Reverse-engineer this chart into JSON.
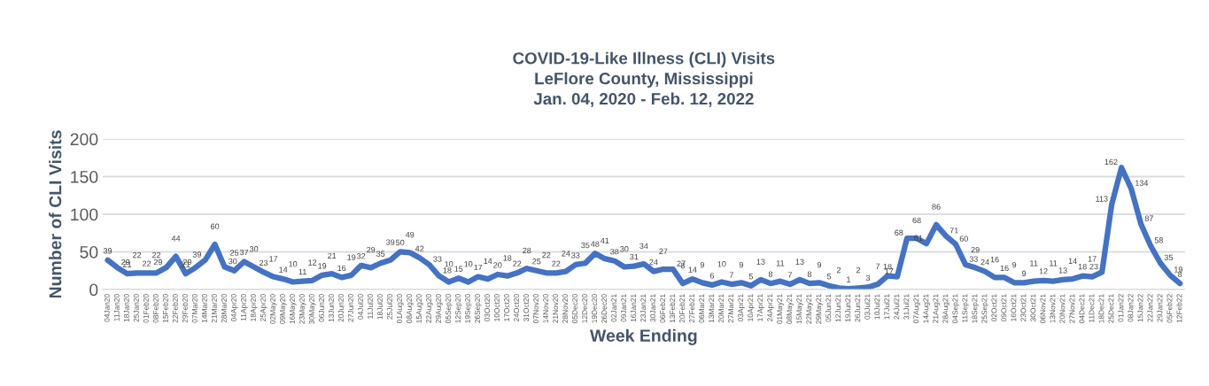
{
  "chart_data": {
    "type": "line",
    "title": "COVID-19-Like Illness (CLI) Visits\nLeFlore County, Mississippi\nJan. 04, 2020 - Feb. 12, 2022",
    "xlabel": "Week Ending",
    "ylabel": "Number of CLI Visits",
    "categories": [
      "04Jan20",
      "11Jan20",
      "18Jan20",
      "25Jan20",
      "01Feb20",
      "08Feb20",
      "15Feb20",
      "22Feb20",
      "29Feb20",
      "07Mar20",
      "14Mar20",
      "21Mar20",
      "28Mar20",
      "04Apr20",
      "11Apr20",
      "18Apr20",
      "25Apr20",
      "02May20",
      "09May20",
      "16May20",
      "23May20",
      "30May20",
      "06Jun20",
      "13Jun20",
      "20Jun20",
      "27Jun20",
      "04Jul20",
      "11Jul20",
      "18Jul20",
      "25Jul20",
      "01Aug20",
      "08Aug20",
      "15Aug20",
      "22Aug20",
      "29Aug20",
      "05Sep20",
      "12Sep20",
      "19Sep20",
      "26Sep20",
      "03Oct20",
      "10Oct20",
      "17Oct20",
      "24Oct20",
      "31Oct20",
      "07Nov20",
      "14Nov20",
      "21Nov20",
      "28Nov20",
      "05Dec20",
      "12Dec20",
      "19Dec20",
      "26Dec20",
      "02Jan21",
      "09Jan21",
      "16Jan21",
      "23Jan21",
      "30Jan21",
      "06Feb21",
      "13Feb21",
      "20Feb21",
      "27Feb21",
      "06Mar21",
      "13Mar21",
      "20Mar21",
      "27Mar21",
      "03Apr21",
      "10Apr21",
      "17Apr21",
      "24Apr21",
      "01May21",
      "08May21",
      "15May21",
      "22May21",
      "29May21",
      "05Jun21",
      "12Jun21",
      "19Jun21",
      "26Jun21",
      "03Jul21",
      "10Jul21",
      "17Jul21",
      "24Jul21",
      "31Jul21",
      "07Aug21",
      "14Aug21",
      "21Aug21",
      "28Aug21",
      "04Sep21",
      "11Sep21",
      "18Sep21",
      "25Sep21",
      "02Oct21",
      "09Oct21",
      "16Oct21",
      "23Oct21",
      "30Oct21",
      "06Nov21",
      "13Nov21",
      "20Nov21",
      "27Nov21",
      "04Dec21",
      "11Dec21",
      "18Dec21",
      "25Dec21",
      "01Jan22",
      "08Jan22",
      "15Jan22",
      "22Jan22",
      "29Jan22",
      "05Feb22",
      "12Feb22"
    ],
    "series": [
      {
        "color": "#4472c4",
        "values": [
          39,
          29,
          21,
          22,
          22,
          22,
          29,
          44,
          21,
          29,
          39,
          60,
          30,
          25,
          37,
          30,
          23,
          17,
          14,
          10,
          11,
          12,
          19,
          21,
          16,
          19,
          32,
          29,
          35,
          39,
          50,
          49,
          42,
          33,
          18,
          10,
          15,
          10,
          17,
          14,
          20,
          18,
          22,
          28,
          25,
          22,
          22,
          24,
          33,
          35,
          48,
          41,
          38,
          30,
          31,
          34,
          24,
          27,
          27,
          8,
          14,
          9,
          6,
          10,
          7,
          9,
          5,
          13,
          8,
          11,
          7,
          13,
          8,
          9,
          5,
          2,
          1,
          2,
          3,
          7,
          18,
          17,
          68,
          68,
          61,
          86,
          71,
          60,
          33,
          29,
          24,
          16,
          16,
          9,
          9,
          11,
          12,
          11,
          13,
          14,
          18,
          17,
          23,
          113,
          162,
          134,
          87,
          58,
          35,
          19,
          8
        ]
      }
    ],
    "ylim": [
      0,
      200
    ],
    "yticks": [
      0,
      50,
      100,
      150,
      200
    ],
    "grid": "y",
    "data_labels": true,
    "legend": false
  }
}
